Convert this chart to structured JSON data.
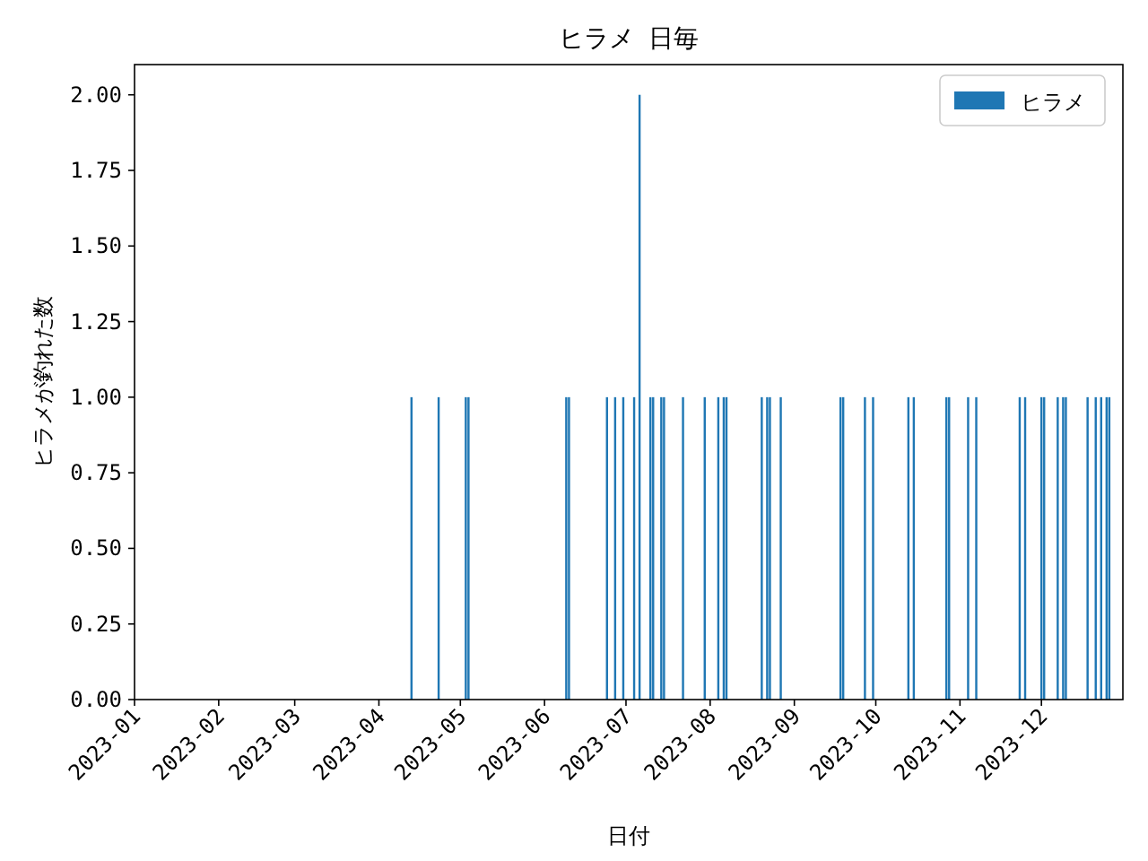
{
  "chart_data": {
    "type": "bar",
    "title": "ヒラメ 日毎",
    "xlabel": "日付",
    "ylabel": "ヒラメが釣れた数",
    "x": [
      "2023-04-13",
      "2023-04-23",
      "2023-05-03",
      "2023-05-04",
      "2023-06-09",
      "2023-06-10",
      "2023-06-24",
      "2023-06-27",
      "2023-06-30",
      "2023-07-04",
      "2023-07-06",
      "2023-07-10",
      "2023-07-11",
      "2023-07-14",
      "2023-07-15",
      "2023-07-22",
      "2023-07-30",
      "2023-08-04",
      "2023-08-06",
      "2023-08-07",
      "2023-08-20",
      "2023-08-22",
      "2023-08-23",
      "2023-08-27",
      "2023-09-18",
      "2023-09-19",
      "2023-09-27",
      "2023-09-30",
      "2023-10-13",
      "2023-10-15",
      "2023-10-27",
      "2023-10-28",
      "2023-11-04",
      "2023-11-07",
      "2023-11-23",
      "2023-11-25",
      "2023-12-01",
      "2023-12-02",
      "2023-12-07",
      "2023-12-09",
      "2023-12-10",
      "2023-12-18",
      "2023-12-21",
      "2023-12-23",
      "2023-12-25",
      "2023-12-26"
    ],
    "series": [
      {
        "name": "ヒラメ",
        "color": "#1f77b4",
        "values": [
          1,
          1,
          1,
          1,
          1,
          1,
          1,
          1,
          1,
          1,
          2,
          1,
          1,
          1,
          1,
          1,
          1,
          1,
          1,
          1,
          1,
          1,
          1,
          1,
          1,
          1,
          1,
          1,
          1,
          1,
          1,
          1,
          1,
          1,
          1,
          1,
          1,
          1,
          1,
          1,
          1,
          1,
          1,
          1,
          1,
          1
        ]
      }
    ],
    "xlim": [
      "2023-01-01",
      "2023-12-31"
    ],
    "xticks": [
      {
        "value": "2023-01-01",
        "label": "2023-01"
      },
      {
        "value": "2023-02-01",
        "label": "2023-02"
      },
      {
        "value": "2023-03-01",
        "label": "2023-03"
      },
      {
        "value": "2023-04-01",
        "label": "2023-04"
      },
      {
        "value": "2023-05-01",
        "label": "2023-05"
      },
      {
        "value": "2023-06-01",
        "label": "2023-06"
      },
      {
        "value": "2023-07-01",
        "label": "2023-07"
      },
      {
        "value": "2023-08-01",
        "label": "2023-08"
      },
      {
        "value": "2023-09-01",
        "label": "2023-09"
      },
      {
        "value": "2023-10-01",
        "label": "2023-10"
      },
      {
        "value": "2023-11-01",
        "label": "2023-11"
      },
      {
        "value": "2023-12-01",
        "label": "2023-12"
      }
    ],
    "ylim": [
      0,
      2.1
    ],
    "yticks": [
      {
        "value": 0,
        "label": "0.00"
      },
      {
        "value": 0.25,
        "label": "0.25"
      },
      {
        "value": 0.5,
        "label": "0.50"
      },
      {
        "value": 0.75,
        "label": "0.75"
      },
      {
        "value": 1,
        "label": "1.00"
      },
      {
        "value": 1.25,
        "label": "1.25"
      },
      {
        "value": 1.5,
        "label": "1.50"
      },
      {
        "value": 1.75,
        "label": "1.75"
      },
      {
        "value": 2,
        "label": "2.00"
      }
    ],
    "legend": "top right",
    "grid": false
  }
}
